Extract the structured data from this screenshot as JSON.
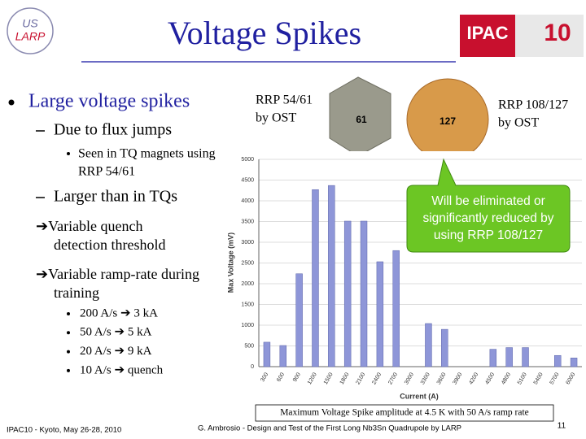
{
  "slide": {
    "logo_left": [
      "US",
      "LARP"
    ],
    "logo_right": [
      "IPAC",
      "10"
    ],
    "title": "Voltage Spikes",
    "bullets": {
      "main": "Large voltage spikes",
      "flux": "Due to flux jumps",
      "seen": [
        "Seen in TQ magnets using",
        "RRP 54/61"
      ],
      "larger": "Larger than in TQs",
      "quench": [
        "➔Variable quench",
        "detection threshold"
      ],
      "ramp": [
        "➔Variable ramp-rate during",
        "training"
      ],
      "rates": [
        "200 A/s ➔ 3 kA",
        "50 A/s ➔ 5 kA",
        "20 A/s ➔ 9 kA",
        "10 A/s ➔ quench"
      ]
    },
    "photo_left": {
      "caption": [
        "RRP 54/61",
        "by OST"
      ],
      "number": "61"
    },
    "photo_right": {
      "caption": [
        "RRP 108/127",
        "by OST"
      ],
      "number": "127"
    },
    "callout": [
      "Will be eliminated or",
      "significantly reduced by",
      "using RRP 108/127"
    ],
    "footer": {
      "left": "IPAC10 - Kyoto, May 26-28, 2010",
      "center": "G. Ambrosio - Design and Test of the First Long Nb3Sn Quadrupole by LARP",
      "page": "11"
    }
  },
  "chart_data": {
    "type": "bar",
    "caption": "Maximum Voltage Spike amplitude at 4.5 K with 50 A/s ramp rate",
    "x_label": "Current (A)",
    "y_label": "Max Voltage (mV)",
    "categories": [
      "300",
      "600",
      "900",
      "1200",
      "1500",
      "1800",
      "2100",
      "2400",
      "2700",
      "3000",
      "3300",
      "3600",
      "3900",
      "4200",
      "4500",
      "4800",
      "5100",
      "5400",
      "5700",
      "6000"
    ],
    "values": [
      590,
      510,
      2240,
      4270,
      4370,
      3510,
      3510,
      2530,
      2800,
      null,
      1040,
      900,
      null,
      null,
      420,
      460,
      460,
      null,
      270,
      210
    ],
    "color": "#8e96d8",
    "ylim": [
      0,
      5000
    ],
    "yticks": [
      0,
      500,
      1000,
      1500,
      2000,
      2500,
      3000,
      3500,
      4000,
      4500,
      5000
    ],
    "grid": true
  }
}
